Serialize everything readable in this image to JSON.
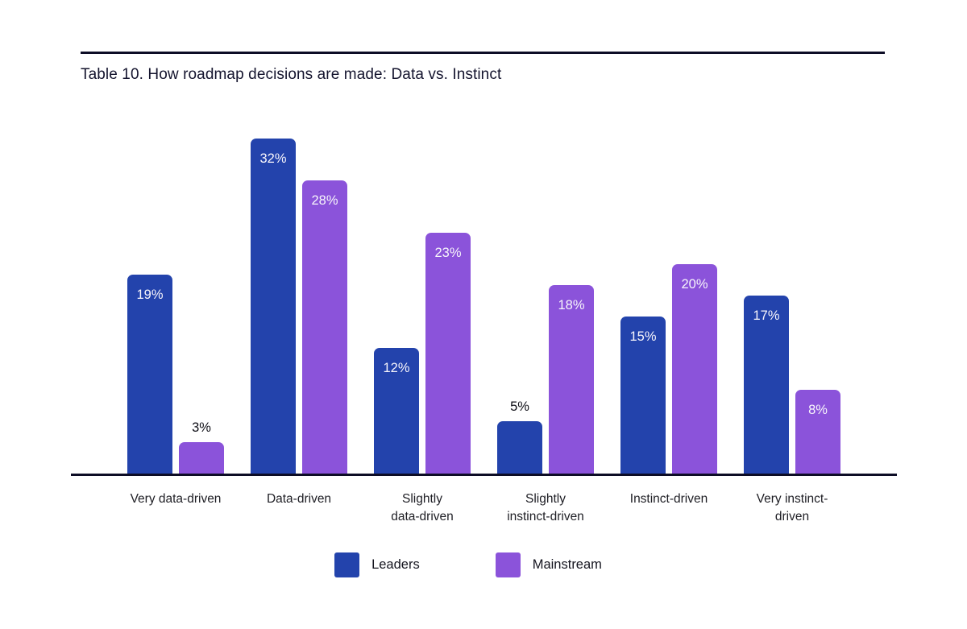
{
  "chart_data": {
    "type": "bar",
    "title": "Table 10. How roadmap decisions are made: Data vs. Instinct",
    "categories": [
      "Very data-driven",
      "Data-driven",
      "Slightly data-driven",
      "Slightly instinct-driven",
      "Instinct-driven",
      "Very instinct-driven"
    ],
    "tick_labels": [
      "Very data-driven",
      "Data-driven",
      "Slightly\ndata-driven",
      "Slightly\ninstinct-driven",
      "Instinct-driven",
      "Very instinct-\ndriven"
    ],
    "series": [
      {
        "name": "Leaders",
        "color": "#2343ac",
        "values": [
          19,
          32,
          12,
          5,
          15,
          17
        ]
      },
      {
        "name": "Mainstream",
        "color": "#8b53da",
        "values": [
          3,
          28,
          23,
          18,
          20,
          8
        ]
      }
    ],
    "value_suffix": "%",
    "ylim": [
      0,
      35
    ],
    "grid": false,
    "legend_position": "bottom",
    "xlabel": "",
    "ylabel": ""
  }
}
